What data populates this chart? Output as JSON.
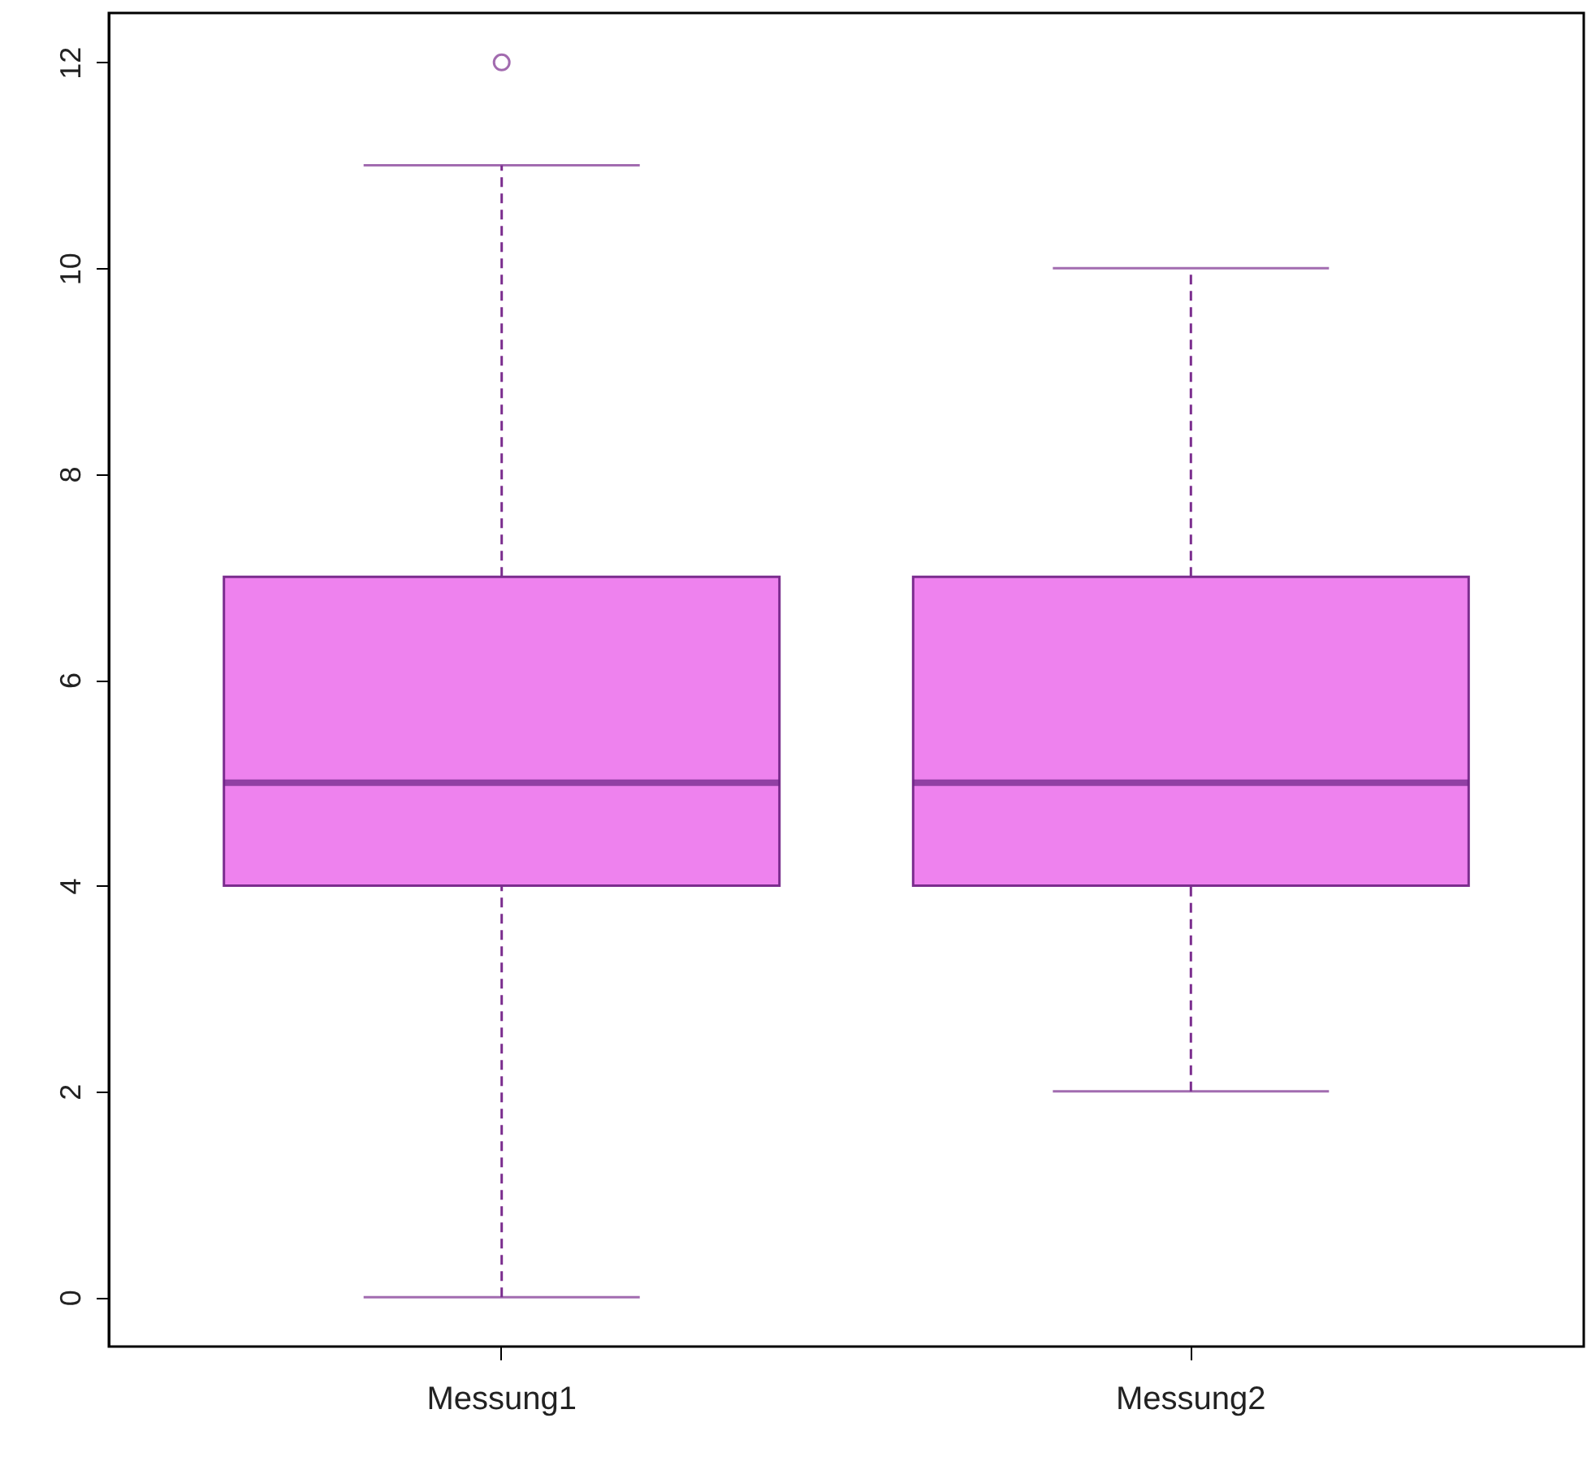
{
  "chart_data": {
    "type": "box",
    "categories": [
      "Messung1",
      "Messung2"
    ],
    "color": "#ee82ee",
    "boxes": [
      {
        "low": 0,
        "q1": 4,
        "median": 5,
        "q3": 7,
        "high": 11,
        "outliers": [
          12
        ]
      },
      {
        "low": 2,
        "q1": 4,
        "median": 5,
        "q3": 7,
        "high": 10
      }
    ],
    "ylim": [
      -0.48,
      12.48
    ],
    "yticks": [
      0,
      2,
      4,
      6,
      8,
      10,
      12
    ],
    "grid": false
  }
}
